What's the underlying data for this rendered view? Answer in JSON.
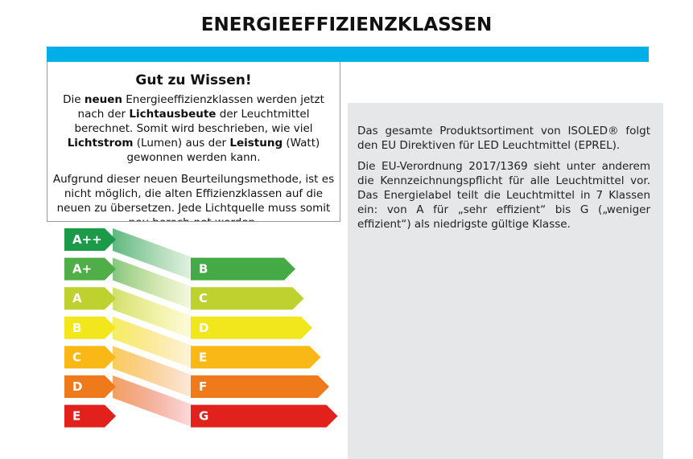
{
  "title": "ENERGIEEFFIZIENZKLASSEN",
  "info_box": {
    "heading": "Gut zu Wissen!",
    "paragraphs": [
      [
        {
          "text": "Die "
        },
        {
          "text": "neuen",
          "bold": true
        },
        {
          "text": " Energieeffizienzklassen werden jetzt nach der "
        },
        {
          "text": "Lichtausbeute",
          "bold": true
        },
        {
          "text": " der Leuchtmittel berechnet. Somit wird beschrieben, wie viel "
        },
        {
          "text": "Lichtstrom",
          "bold": true
        },
        {
          "text": " (Lumen) aus der "
        },
        {
          "text": "Leistung",
          "bold": true
        },
        {
          "text": " (Watt) gewonnen werden kann."
        }
      ],
      [
        {
          "text": "Aufgrund dieser neuen Beurteilungsmethode, ist es nicht möglich, die alten Effizienzklassen auf die neuen zu übersetzen. Jede Lichtquelle muss somit neu berech-net werden."
        }
      ]
    ]
  },
  "description": [
    "Das gesamte Produktsortiment von ISOLED® folgt den EU Direktiven für LED Leuchtmittel (EPREL).",
    "Die EU-Verordnung 2017/1369 sieht unter anderem die Kennzeichnungspflicht für alle Leuchtmittel vor. Das Energielabel teilt die Leuchtmittel in 7 Klassen ein: von A für „sehr effizient“ bis G („weniger effizient“) als niedrigste gültige Klasse."
  ],
  "old_classes": [
    {
      "label": "A++",
      "color": "#1b9a4a"
    },
    {
      "label": "A+",
      "color": "#4fae47"
    },
    {
      "label": "A",
      "color": "#bdd22f"
    },
    {
      "label": "B",
      "color": "#f1e71c"
    },
    {
      "label": "C",
      "color": "#f9b815"
    },
    {
      "label": "D",
      "color": "#ee7a1c"
    },
    {
      "label": "E",
      "color": "#e2211c"
    }
  ],
  "new_classes": [
    {
      "label": "B",
      "color": "#45a946"
    },
    {
      "label": "C",
      "color": "#bdd22f"
    },
    {
      "label": "D",
      "color": "#f1e71c"
    },
    {
      "label": "E",
      "color": "#f9b815"
    },
    {
      "label": "F",
      "color": "#ee7a1c"
    },
    {
      "label": "G",
      "color": "#e2211c"
    }
  ]
}
